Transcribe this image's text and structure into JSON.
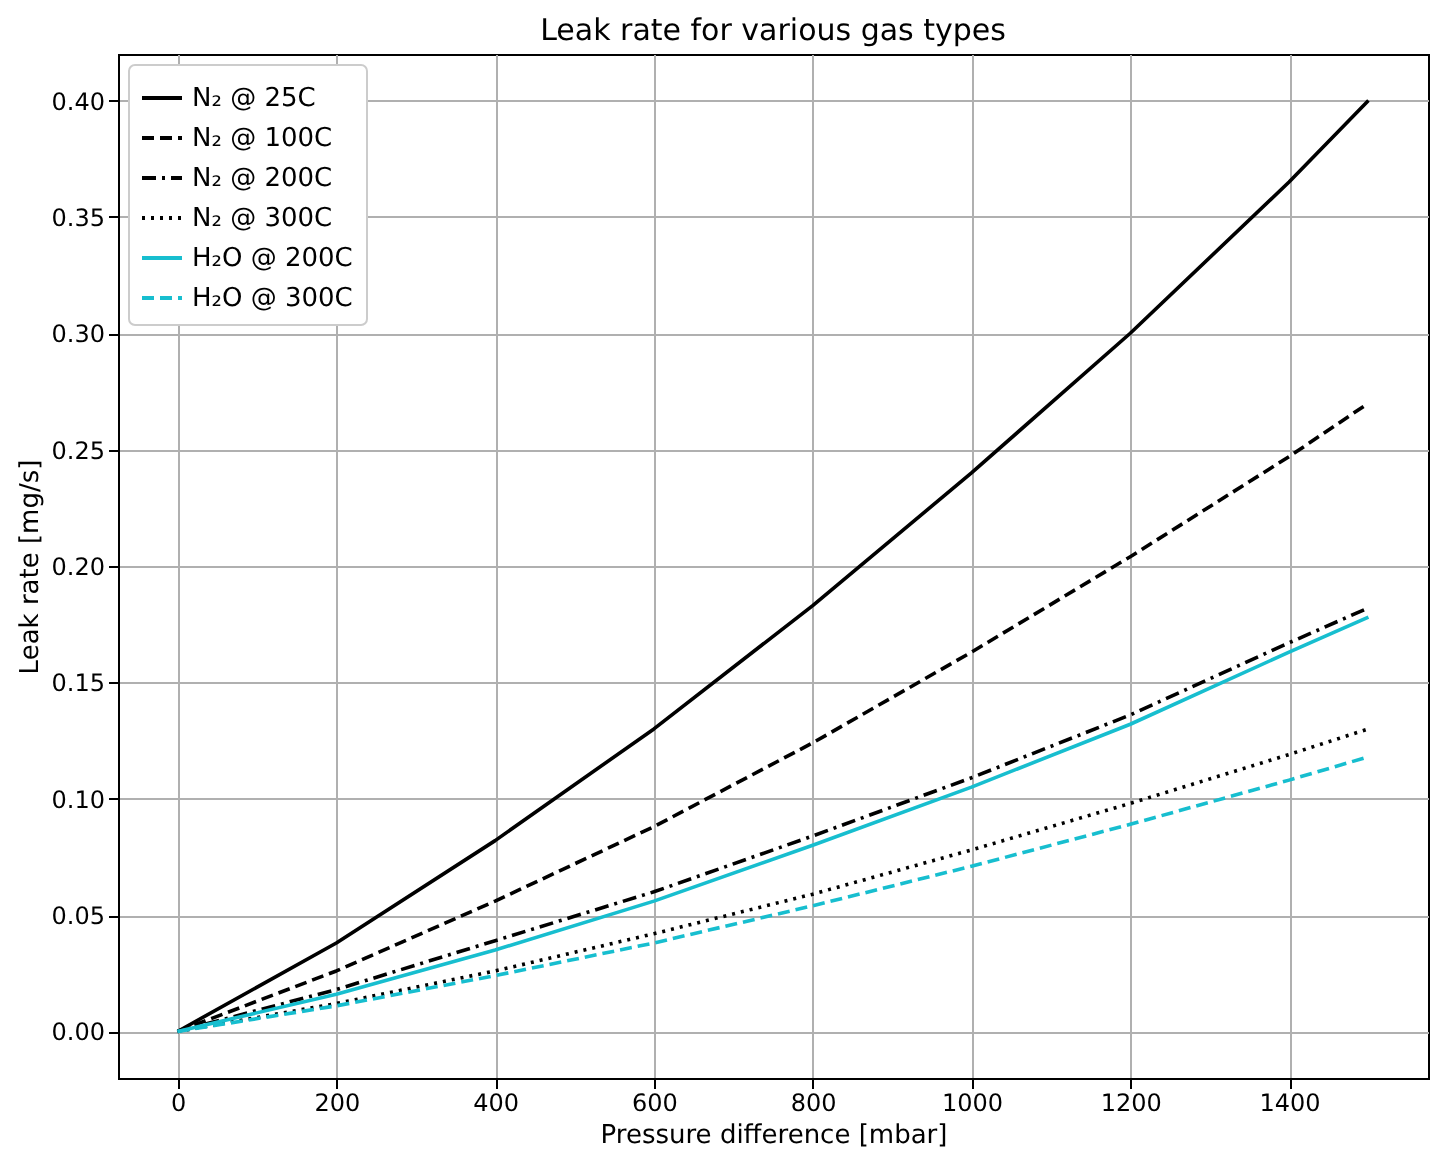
{
  "chart_data": {
    "type": "line",
    "title": "Leak rate for various gas types",
    "xlabel": "Pressure difference [mbar]",
    "ylabel": "Leak rate [mg/s]",
    "x": [
      0,
      200,
      400,
      600,
      800,
      1000,
      1200,
      1400,
      1500
    ],
    "series": [
      {
        "name": "N₂ @ 25C",
        "color": "#000000",
        "line_style": "solid",
        "values": [
          0,
          0.038,
          0.082,
          0.13,
          0.183,
          0.24,
          0.3,
          0.365,
          0.4
        ]
      },
      {
        "name": "N₂ @ 100C",
        "color": "#000000",
        "line_style": "dashed",
        "values": [
          0,
          0.026,
          0.056,
          0.088,
          0.124,
          0.163,
          0.204,
          0.247,
          0.27
        ]
      },
      {
        "name": "N₂ @ 200C",
        "color": "#000000",
        "line_style": "dashdot",
        "values": [
          0,
          0.018,
          0.039,
          0.06,
          0.084,
          0.109,
          0.136,
          0.167,
          0.182
        ]
      },
      {
        "name": "N₂ @ 300C",
        "color": "#000000",
        "line_style": "dotted",
        "values": [
          0,
          0.012,
          0.026,
          0.042,
          0.059,
          0.078,
          0.098,
          0.119,
          0.13
        ]
      },
      {
        "name": "H₂O @ 200C",
        "color": "#17becf",
        "line_style": "solid",
        "values": [
          0,
          0.016,
          0.035,
          0.056,
          0.08,
          0.105,
          0.132,
          0.163,
          0.178
        ]
      },
      {
        "name": "H₂O @ 300C",
        "color": "#17becf",
        "line_style": "dashed",
        "values": [
          0,
          0.011,
          0.024,
          0.038,
          0.054,
          0.071,
          0.089,
          0.108,
          0.118
        ]
      }
    ],
    "xlim": [
      -75,
      1575
    ],
    "ylim": [
      -0.02,
      0.42
    ],
    "xticks": [
      0,
      200,
      400,
      600,
      800,
      1000,
      1200,
      1400
    ],
    "yticks": [
      {
        "value": 0,
        "label": "0.00"
      },
      0.05,
      {
        "value": 0.1,
        "label": "0.10"
      },
      0.15,
      {
        "value": 0.2,
        "label": "0.20"
      },
      0.25,
      {
        "value": 0.3,
        "label": "0.30"
      },
      0.35,
      {
        "value": 0.4,
        "label": "0.40"
      }
    ],
    "grid": true,
    "legend": "top left",
    "marker": "none"
  }
}
